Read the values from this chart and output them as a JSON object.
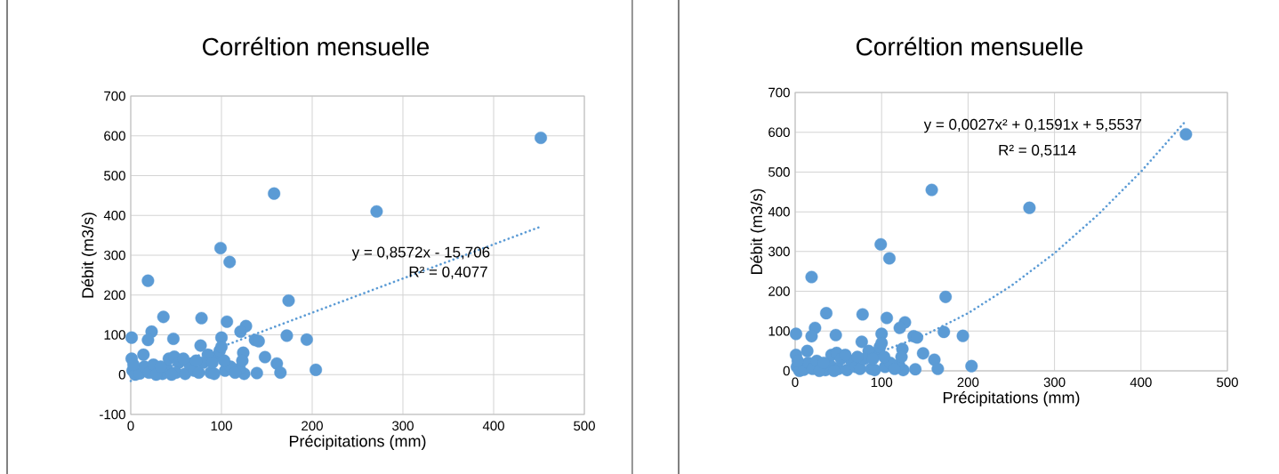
{
  "chart_data": [
    {
      "type": "scatter",
      "title": "Corréltion mensuelle",
      "xlabel": "Précipitations (mm)",
      "ylabel": "Débit (m3/s)",
      "xlim": [
        0,
        500
      ],
      "xticks": [
        0,
        100,
        200,
        300,
        400,
        500
      ],
      "ylim": [
        -100,
        700
      ],
      "yticks": [
        -100,
        0,
        100,
        200,
        300,
        400,
        500,
        600,
        700
      ],
      "grid": true,
      "annotations": [
        "y = 0,8572x - 15,706",
        "R² = 0,4077"
      ],
      "series": [
        {
          "marker": "circle",
          "color": "#5b9bd5",
          "x": [
            452,
            271,
            158,
            99,
            109,
            19,
            174,
            36,
            78,
            106,
            127,
            121,
            23,
            1,
            47,
            19,
            100,
            172,
            194,
            137,
            141,
            148,
            161,
            165,
            204,
            125,
            139,
            120,
            124,
            123,
            96,
            98,
            100,
            85,
            77,
            14,
            1,
            2,
            5,
            10,
            15,
            20,
            25,
            35,
            40,
            42,
            48,
            53,
            50,
            60,
            65,
            70,
            75,
            80,
            88,
            92,
            104,
            110,
            115,
            28,
            45,
            72,
            58,
            33,
            3,
            90,
            103
          ],
          "values": [
            595,
            410,
            455,
            318,
            283,
            236,
            186,
            145,
            142,
            133,
            122,
            108,
            108,
            93,
            90,
            87,
            93,
            98,
            88,
            87,
            84,
            44,
            28,
            5,
            12,
            2,
            4,
            15,
            55,
            35,
            48,
            60,
            70,
            50,
            73,
            50,
            40,
            10,
            0,
            3,
            20,
            5,
            25,
            2,
            15,
            40,
            45,
            30,
            5,
            2,
            25,
            10,
            5,
            30,
            5,
            2,
            10,
            20,
            5,
            0,
            0,
            35,
            40,
            20,
            25,
            30,
            35
          ]
        },
        {
          "type": "line",
          "marker": "none",
          "line_style": "dotted",
          "color": "#5b9bd5",
          "x": [
            0,
            452
          ],
          "values": [
            -16,
            372
          ]
        }
      ]
    },
    {
      "type": "scatter",
      "title": "Corréltion mensuelle",
      "xlabel": "Précipitations (mm)",
      "ylabel": "Débit (m3/s)",
      "xlim": [
        0,
        500
      ],
      "xticks": [
        0,
        100,
        200,
        300,
        400,
        500
      ],
      "ylim": [
        0,
        700
      ],
      "yticks": [
        0,
        100,
        200,
        300,
        400,
        500,
        600,
        700
      ],
      "grid": true,
      "annotations": [
        "y = 0,0027x² + 0,1591x + 5,5537",
        "R² = 0,5114"
      ],
      "series": [
        {
          "marker": "circle",
          "color": "#5b9bd5",
          "x": [
            452,
            271,
            158,
            99,
            109,
            19,
            174,
            36,
            78,
            106,
            127,
            121,
            23,
            1,
            47,
            19,
            100,
            172,
            194,
            137,
            141,
            148,
            161,
            165,
            204,
            125,
            139,
            120,
            124,
            123,
            96,
            98,
            100,
            85,
            77,
            14,
            1,
            2,
            5,
            10,
            15,
            20,
            25,
            35,
            40,
            42,
            48,
            53,
            50,
            60,
            65,
            70,
            75,
            80,
            88,
            92,
            104,
            110,
            115,
            28,
            45,
            72,
            58,
            33,
            3,
            90,
            103
          ],
          "values": [
            595,
            410,
            455,
            318,
            283,
            236,
            186,
            145,
            142,
            133,
            122,
            108,
            108,
            93,
            90,
            87,
            93,
            98,
            88,
            87,
            84,
            44,
            28,
            5,
            12,
            2,
            4,
            15,
            55,
            35,
            48,
            60,
            70,
            50,
            73,
            50,
            40,
            10,
            0,
            3,
            20,
            5,
            25,
            2,
            15,
            40,
            45,
            30,
            5,
            2,
            25,
            10,
            5,
            30,
            5,
            2,
            10,
            20,
            5,
            0,
            0,
            35,
            40,
            20,
            25,
            30,
            35
          ]
        },
        {
          "type": "line",
          "marker": "none",
          "line_style": "dotted",
          "color": "#5b9bd5",
          "x": [
            0,
            50,
            100,
            150,
            200,
            250,
            300,
            350,
            400,
            452
          ],
          "values": [
            6,
            20,
            49,
            90,
            145,
            214,
            296,
            392,
            501,
            629
          ]
        }
      ]
    }
  ]
}
